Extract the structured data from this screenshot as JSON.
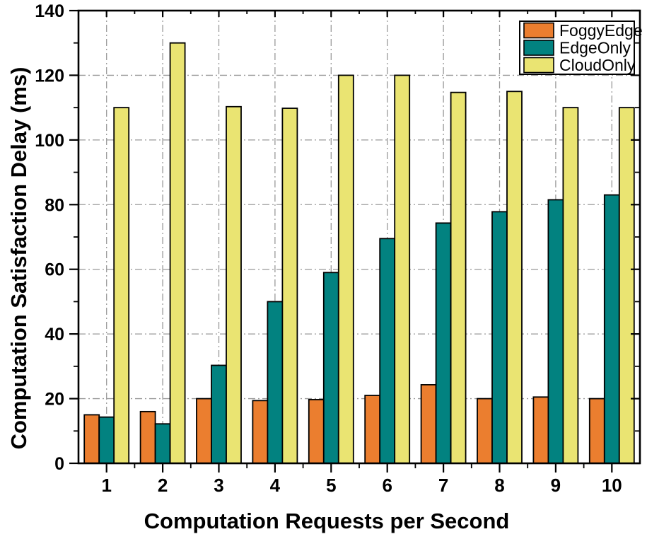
{
  "figure": {
    "background": "#ffffff",
    "axis_color": "#000000",
    "grid_color": "#999999"
  },
  "chart_data": {
    "type": "bar",
    "title": "",
    "xlabel": "Computation Requests per Second",
    "ylabel": "Computation Satisfaction Delay (ms)",
    "categories": [
      "1",
      "2",
      "3",
      "4",
      "5",
      "6",
      "7",
      "8",
      "9",
      "10"
    ],
    "series": [
      {
        "name": "FoggyEdge",
        "color": "#EB7E2F",
        "values": [
          15,
          16,
          20,
          19.4,
          19.7,
          21,
          24.3,
          20,
          20.5,
          20
        ]
      },
      {
        "name": "EdgeOnly",
        "color": "#028280",
        "values": [
          14.3,
          12.2,
          30.3,
          50,
          59,
          69.5,
          74.3,
          77.8,
          81.5,
          83
        ]
      },
      {
        "name": "CloudOnly",
        "color": "#EAE472",
        "values": [
          110,
          130,
          110.3,
          109.8,
          120,
          120,
          114.7,
          115,
          110,
          110
        ]
      }
    ],
    "ylim": [
      0,
      140
    ],
    "y_major_step": 20,
    "y_minor_step": 10,
    "ytick_labels": [
      "0",
      "20",
      "40",
      "60",
      "80",
      "100",
      "120",
      "140"
    ],
    "grid": {
      "horizontal": true,
      "vertical": true,
      "style": "dash-dot",
      "color": "#999999"
    },
    "legend": {
      "position": "top-right",
      "entries": [
        "FoggyEdge",
        "EdgeOnly",
        "CloudOnly"
      ]
    },
    "bar_outline": "#000000"
  }
}
